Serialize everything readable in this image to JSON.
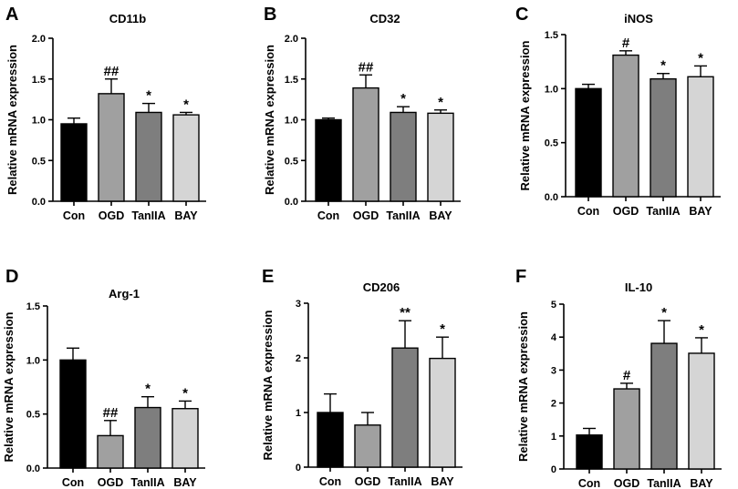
{
  "chart_data": [
    {
      "type": "bar",
      "letter": "A",
      "title": "CD11b",
      "ylabel": "Relative mRNA expression",
      "categories": [
        "Con",
        "OGD",
        "TanIIA",
        "BAY"
      ],
      "values": [
        0.95,
        1.32,
        1.09,
        1.06
      ],
      "errors": [
        0.07,
        0.18,
        0.11,
        0.03
      ],
      "significance": [
        "",
        "##",
        "*",
        "*"
      ],
      "ylim": [
        0,
        2.0
      ],
      "yticks": [
        0,
        0.5,
        1.0,
        1.5,
        2.0
      ],
      "ytick_labels": [
        "0.0",
        "0.5",
        "1.0",
        "1.5",
        "2.0"
      ]
    },
    {
      "type": "bar",
      "letter": "B",
      "title": "CD32",
      "ylabel": "Relative mRNA expression",
      "categories": [
        "Con",
        "OGD",
        "TanIIA",
        "BAY"
      ],
      "values": [
        1.0,
        1.39,
        1.09,
        1.08
      ],
      "errors": [
        0.02,
        0.16,
        0.07,
        0.04
      ],
      "significance": [
        "",
        "##",
        "*",
        "*"
      ],
      "ylim": [
        0,
        2.0
      ],
      "yticks": [
        0,
        0.5,
        1.0,
        1.5,
        2.0
      ],
      "ytick_labels": [
        "0.0",
        "0.5",
        "1.0",
        "1.5",
        "2.0"
      ]
    },
    {
      "type": "bar",
      "letter": "C",
      "title": "iNOS",
      "ylabel": "Relative mRNA expression",
      "categories": [
        "Con",
        "OGD",
        "TanIIA",
        "BAY"
      ],
      "values": [
        1.0,
        1.31,
        1.09,
        1.11
      ],
      "errors": [
        0.04,
        0.04,
        0.05,
        0.1
      ],
      "significance": [
        "",
        "#",
        "*",
        "*"
      ],
      "ylim": [
        0,
        1.5
      ],
      "yticks": [
        0,
        0.5,
        1.0,
        1.5
      ],
      "ytick_labels": [
        "0.0",
        "0.5",
        "1.0",
        "1.5"
      ]
    },
    {
      "type": "bar",
      "letter": "D",
      "title": "Arg-1",
      "ylabel": "Relative mRNA expression",
      "categories": [
        "Con",
        "OGD",
        "TanIIA",
        "BAY"
      ],
      "values": [
        1.0,
        0.3,
        0.56,
        0.55
      ],
      "errors": [
        0.11,
        0.14,
        0.1,
        0.07
      ],
      "significance": [
        "",
        "##",
        "*",
        "*"
      ],
      "ylim": [
        0,
        1.5
      ],
      "yticks": [
        0,
        0.5,
        1.0,
        1.5
      ],
      "ytick_labels": [
        "0.0",
        "0.5",
        "1.0",
        "1.5"
      ]
    },
    {
      "type": "bar",
      "letter": "E",
      "title": "CD206",
      "ylabel": "Relative mRNA expression",
      "categories": [
        "Con",
        "OGD",
        "TanIIA",
        "BAY"
      ],
      "values": [
        1.0,
        0.77,
        2.18,
        1.99
      ],
      "errors": [
        0.34,
        0.23,
        0.5,
        0.39
      ],
      "significance": [
        "",
        "",
        "**",
        "*"
      ],
      "ylim": [
        0,
        3
      ],
      "yticks": [
        0,
        1,
        2,
        3
      ],
      "ytick_labels": [
        "0",
        "1",
        "2",
        "3"
      ]
    },
    {
      "type": "bar",
      "letter": "F",
      "title": "IL-10",
      "ylabel": "Relative mRNA expression",
      "categories": [
        "Con",
        "OGD",
        "TanIIA",
        "BAY"
      ],
      "values": [
        1.03,
        2.43,
        3.81,
        3.51
      ],
      "errors": [
        0.2,
        0.17,
        0.69,
        0.47
      ],
      "significance": [
        "",
        "#",
        "*",
        "*"
      ],
      "ylim": [
        0,
        5
      ],
      "yticks": [
        0,
        1,
        2,
        3,
        4,
        5
      ],
      "ytick_labels": [
        "0",
        "1",
        "2",
        "3",
        "4",
        "5"
      ]
    }
  ],
  "colors": {
    "bar_fills": [
      "#000000",
      "#a0a0a0",
      "#7e7e7e",
      "#d5d5d5"
    ],
    "axis": "#000000"
  }
}
